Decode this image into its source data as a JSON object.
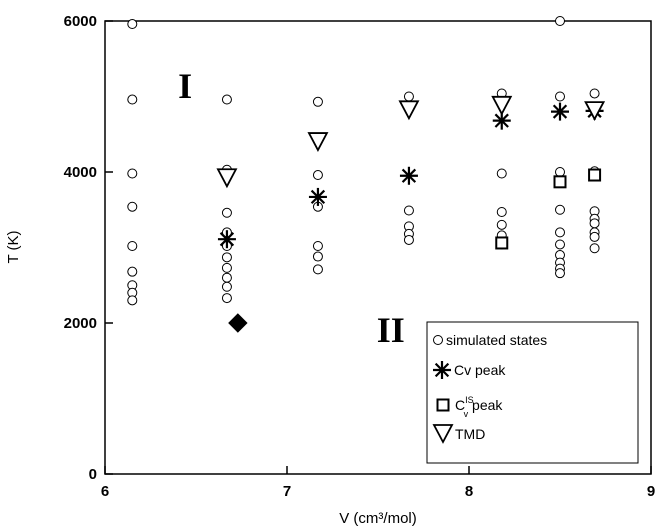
{
  "chart_data": {
    "type": "scatter",
    "title": "",
    "xlabel": "V (cm³/mol)",
    "ylabel": "T (K)",
    "xlim": [
      6,
      9
    ],
    "ylim": [
      0,
      6000
    ],
    "xticks": [
      6,
      7,
      8,
      9
    ],
    "yticks": [
      0,
      2000,
      4000,
      6000
    ],
    "grid": false,
    "legend_position": "bottom-right",
    "regions": [
      {
        "label": "I",
        "x": 6.44,
        "y": 4980
      },
      {
        "label": "II",
        "x": 7.57,
        "y": 1750
      }
    ],
    "legend": {
      "simulated": "simulated states",
      "cv_peak": "Cv peak",
      "cis_base": "C",
      "cis_sup": "IS",
      "cis_sub": "v",
      "cis_rest": " peak",
      "tmd": "TMD"
    },
    "series": [
      {
        "name": "simulated states",
        "marker": "open-circle",
        "points": [
          [
            6.15,
            5960
          ],
          [
            6.15,
            4960
          ],
          [
            6.15,
            3980
          ],
          [
            6.15,
            3540
          ],
          [
            6.15,
            3020
          ],
          [
            6.15,
            2680
          ],
          [
            6.15,
            2500
          ],
          [
            6.15,
            2400
          ],
          [
            6.15,
            2300
          ],
          [
            6.67,
            4960
          ],
          [
            6.67,
            4030
          ],
          [
            6.67,
            3460
          ],
          [
            6.67,
            3200
          ],
          [
            6.67,
            3020
          ],
          [
            6.67,
            2870
          ],
          [
            6.67,
            2730
          ],
          [
            6.67,
            2600
          ],
          [
            6.67,
            2480
          ],
          [
            6.67,
            2330
          ],
          [
            7.17,
            4930
          ],
          [
            7.17,
            3960
          ],
          [
            7.17,
            3540
          ],
          [
            7.17,
            3020
          ],
          [
            7.17,
            2880
          ],
          [
            7.17,
            2710
          ],
          [
            7.67,
            5000
          ],
          [
            7.67,
            3490
          ],
          [
            7.67,
            3280
          ],
          [
            7.67,
            3180
          ],
          [
            7.67,
            3100
          ],
          [
            8.18,
            5040
          ],
          [
            8.18,
            3980
          ],
          [
            8.18,
            3470
          ],
          [
            8.18,
            3300
          ],
          [
            8.18,
            3160
          ],
          [
            8.18,
            3040
          ],
          [
            8.5,
            6000
          ],
          [
            8.5,
            5000
          ],
          [
            8.5,
            4000
          ],
          [
            8.5,
            3500
          ],
          [
            8.5,
            3200
          ],
          [
            8.5,
            3040
          ],
          [
            8.5,
            2900
          ],
          [
            8.5,
            2800
          ],
          [
            8.5,
            2720
          ],
          [
            8.5,
            2660
          ],
          [
            8.69,
            5040
          ],
          [
            8.69,
            4010
          ],
          [
            8.69,
            3480
          ],
          [
            8.69,
            3380
          ],
          [
            8.69,
            3320
          ],
          [
            8.69,
            3200
          ],
          [
            8.69,
            3140
          ],
          [
            8.69,
            2990
          ]
        ]
      },
      {
        "name": "Cv peak",
        "marker": "asterisk",
        "points": [
          [
            6.67,
            3110
          ],
          [
            7.17,
            3670
          ],
          [
            7.67,
            3950
          ],
          [
            8.18,
            4680
          ],
          [
            8.5,
            4800
          ],
          [
            8.69,
            4810
          ]
        ]
      },
      {
        "name": "C IS v peak",
        "marker": "open-square",
        "points": [
          [
            8.18,
            3060
          ],
          [
            8.5,
            3870
          ],
          [
            8.69,
            3960
          ]
        ]
      },
      {
        "name": "TMD",
        "marker": "open-triangle-down",
        "points": [
          [
            6.67,
            3930
          ],
          [
            7.17,
            4410
          ],
          [
            7.67,
            4830
          ],
          [
            8.18,
            4890
          ],
          [
            8.69,
            4820
          ]
        ]
      },
      {
        "name": "",
        "marker": "filled-diamond",
        "points": [
          [
            6.73,
            2000
          ]
        ]
      }
    ]
  }
}
